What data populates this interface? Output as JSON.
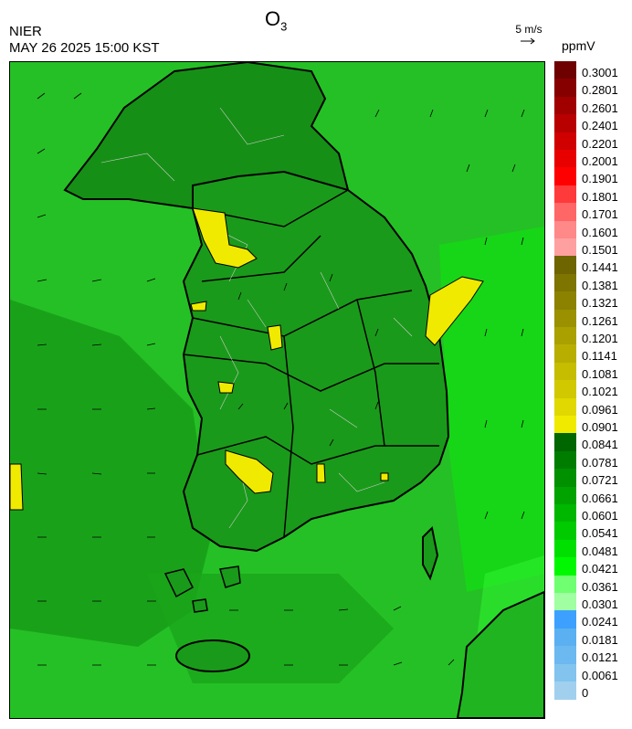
{
  "header": {
    "agency": "NIER",
    "timestamp": "MAY 26 2025 15:00 KST",
    "title_main": "O",
    "title_sub": "3",
    "wind_reference": "5 m/s",
    "unit": "ppmV"
  },
  "colorbar": {
    "labels": [
      "0.3001",
      "0.2801",
      "0.2601",
      "0.2401",
      "0.2201",
      "0.2001",
      "0.1901",
      "0.1801",
      "0.1701",
      "0.1601",
      "0.1501",
      "0.1441",
      "0.1381",
      "0.1321",
      "0.1261",
      "0.1201",
      "0.1141",
      "0.1081",
      "0.1021",
      "0.0961",
      "0.0901",
      "0.0841",
      "0.0781",
      "0.0721",
      "0.0661",
      "0.0601",
      "0.0541",
      "0.0481",
      "0.0421",
      "0.0361",
      "0.0301",
      "0.0241",
      "0.0181",
      "0.0121",
      "0.0061",
      "0"
    ],
    "colors": [
      "#6e0000",
      "#860000",
      "#a00000",
      "#b80000",
      "#d00000",
      "#e80000",
      "#ff0000",
      "#ff3a3a",
      "#ff6666",
      "#ff8888",
      "#ffa0a0",
      "#6e6400",
      "#7e7400",
      "#8c8200",
      "#9a9000",
      "#aaa000",
      "#b8ae00",
      "#c6bc00",
      "#d2c800",
      "#e0d800",
      "#f0ea00",
      "#006600",
      "#007d00",
      "#009000",
      "#00a300",
      "#00b700",
      "#00ca00",
      "#00e000",
      "#00f800",
      "#70ff70",
      "#a0ffa0",
      "#3da0ff",
      "#5ab0f0",
      "#6cb8f0",
      "#82c4ee",
      "#a0d0ee"
    ]
  }
}
